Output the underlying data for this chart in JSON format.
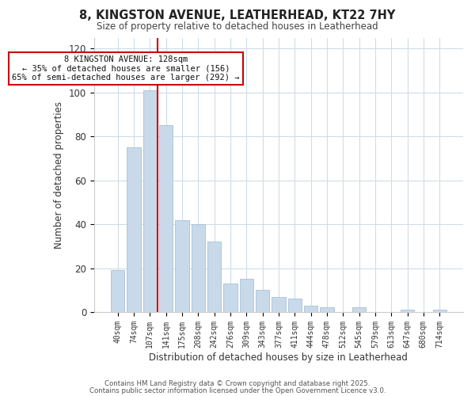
{
  "title_line1": "8, KINGSTON AVENUE, LEATHERHEAD, KT22 7HY",
  "title_line2": "Size of property relative to detached houses in Leatherhead",
  "xlabel": "Distribution of detached houses by size in Leatherhead",
  "ylabel": "Number of detached properties",
  "bar_labels": [
    "40sqm",
    "74sqm",
    "107sqm",
    "141sqm",
    "175sqm",
    "208sqm",
    "242sqm",
    "276sqm",
    "309sqm",
    "343sqm",
    "377sqm",
    "411sqm",
    "444sqm",
    "478sqm",
    "512sqm",
    "545sqm",
    "579sqm",
    "613sqm",
    "647sqm",
    "680sqm",
    "714sqm"
  ],
  "bar_values": [
    19,
    75,
    101,
    85,
    42,
    40,
    32,
    13,
    15,
    10,
    7,
    6,
    3,
    2,
    0,
    2,
    0,
    0,
    1,
    0,
    1
  ],
  "bar_color": "#c8daea",
  "bar_edge_color": "#a8c0d6",
  "vline_x": 2,
  "vline_color": "#cc0000",
  "ylim": [
    0,
    125
  ],
  "yticks": [
    0,
    20,
    40,
    60,
    80,
    100,
    120
  ],
  "annotation_title": "8 KINGSTON AVENUE: 128sqm",
  "annotation_line2": "← 35% of detached houses are smaller (156)",
  "annotation_line3": "65% of semi-detached houses are larger (292) →",
  "annotation_box_color": "#ffffff",
  "annotation_border_color": "#cc0000",
  "footer_line1": "Contains HM Land Registry data © Crown copyright and database right 2025.",
  "footer_line2": "Contains public sector information licensed under the Open Government Licence v3.0.",
  "background_color": "#ffffff",
  "grid_color": "#d0dce8"
}
